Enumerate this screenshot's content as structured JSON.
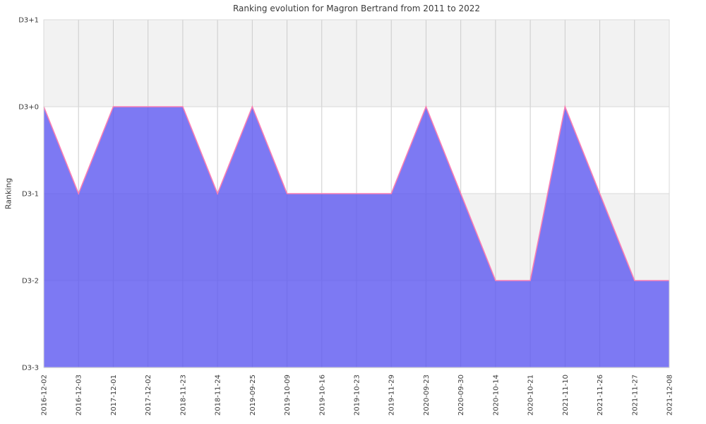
{
  "figure": {
    "background": "#ffffff"
  },
  "chart_data": {
    "type": "area",
    "title": "Ranking evolution for Magron Bertrand from 2011 to 2022",
    "xlabel": "",
    "ylabel": "Ranking",
    "x": [
      "2016-12-02",
      "2016-12-03",
      "2017-12-01",
      "2017-12-02",
      "2018-11-23",
      "2018-11-24",
      "2019-09-25",
      "2019-10-09",
      "2019-10-16",
      "2019-10-23",
      "2019-11-29",
      "2020-09-23",
      "2020-09-30",
      "2020-10-14",
      "2020-10-21",
      "2021-11-10",
      "2021-11-26",
      "2021-11-27",
      "2021-12-08"
    ],
    "series": [
      {
        "name": "Ranking",
        "values": [
          0,
          -1,
          0,
          0,
          0,
          -1,
          0,
          -1,
          -1,
          -1,
          -1,
          0,
          -1,
          -2,
          -2,
          0,
          -1,
          -2,
          -2
        ]
      }
    ],
    "y_tick_labels": [
      "D3+1",
      "D3+0",
      "D3-1",
      "D3-2",
      "D3-3"
    ],
    "y_tick_values": [
      1,
      0,
      -1,
      -2,
      -3
    ],
    "ylim": [
      -3,
      1
    ],
    "x_tick_rotation": -90,
    "grid": true,
    "legend_position": "none",
    "band_pattern": "alternating horizontal bands, shaded band at top",
    "colors": {
      "area_fill": "rgba(93,87,240,0.8)",
      "line": "#f97eb4",
      "band_shaded": "#f2f2f2",
      "band_plain": "#ffffff",
      "grid": "#cccccc",
      "axis": "#d9d9d9",
      "text": "#3a3a3a"
    }
  }
}
